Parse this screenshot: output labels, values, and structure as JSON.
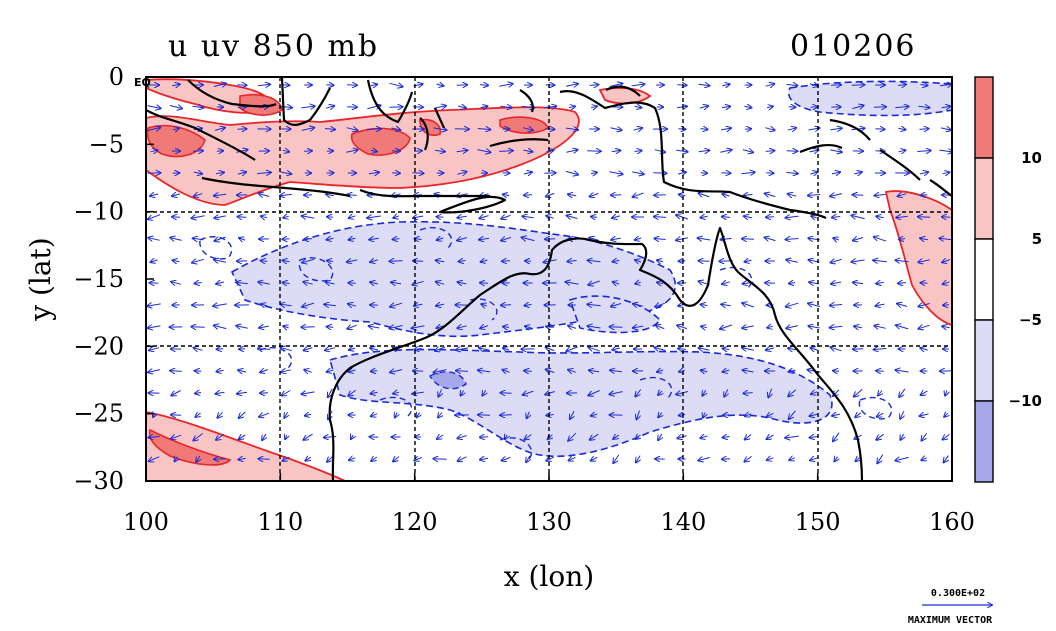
{
  "title": {
    "left": "u uv 850 mb",
    "right": "010206"
  },
  "axes": {
    "xlabel": "x (lon)",
    "ylabel": "y (lat)",
    "x_ticks": [
      "100",
      "110",
      "120",
      "130",
      "140",
      "150",
      "160"
    ],
    "y_ticks": [
      "0",
      "−5",
      "−10",
      "−15",
      "−20",
      "−25",
      "−30"
    ],
    "corner_label": "EQ",
    "xlim": [
      100,
      160
    ],
    "ylim": [
      -30,
      0
    ]
  },
  "colorbar": {
    "tick_labels": [
      "10",
      "5",
      "−5",
      "−10"
    ],
    "bands": [
      {
        "from": 10,
        "to": 15,
        "color": "#f07a78"
      },
      {
        "from": 5,
        "to": 10,
        "color": "#f9c5c4"
      },
      {
        "from": -5,
        "to": 5,
        "color": "#ffffff"
      },
      {
        "from": -10,
        "to": -5,
        "color": "#dcdcf6"
      },
      {
        "from": -15,
        "to": -10,
        "color": "#a7a7ec"
      }
    ]
  },
  "vector_key": {
    "magnitude": "0.300E+02",
    "label": "MAXIMUM VECTOR"
  },
  "colors": {
    "positive_contour": "#e8262a",
    "negative_contour": "#1a2ad8",
    "vector": "#1a2ad8",
    "coast": "#000000",
    "grid": "#000000"
  }
}
